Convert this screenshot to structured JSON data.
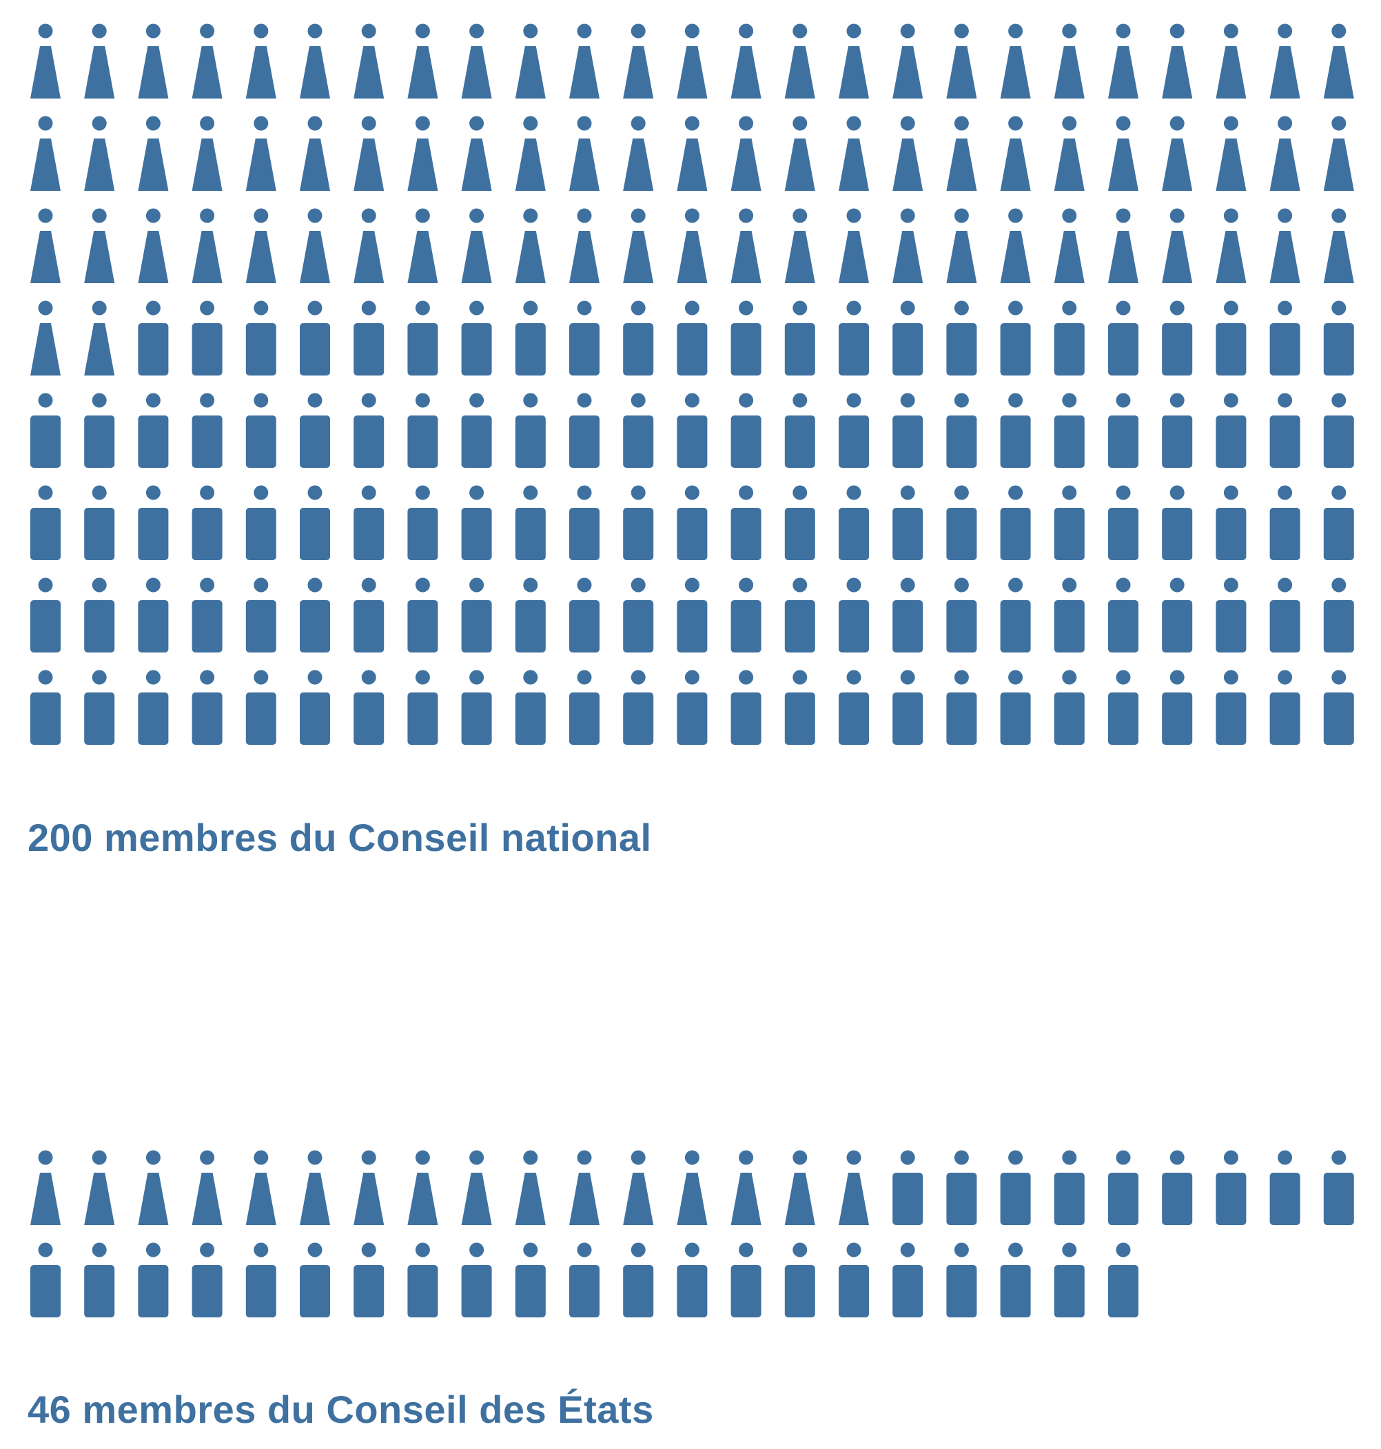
{
  "colors": {
    "figure": "#3f71a0",
    "caption": "#3f71a0",
    "background": "#ffffff"
  },
  "chart_data": [
    {
      "type": "pictogram",
      "title": "200 membres du Conseil national",
      "total": 200,
      "per_row": 25,
      "icon_units": "1 person per icon",
      "series": [
        {
          "name": "",
          "icon": "woman-icon",
          "value": 77
        },
        {
          "name": "",
          "icon": "man-icon",
          "value": 123
        }
      ]
    },
    {
      "type": "pictogram",
      "title": "46 membres du Conseil des États",
      "total": 46,
      "per_row": 25,
      "icon_units": "1 person per icon",
      "series": [
        {
          "name": "",
          "icon": "woman-icon",
          "value": 16
        },
        {
          "name": "",
          "icon": "man-icon",
          "value": 30
        }
      ]
    }
  ]
}
